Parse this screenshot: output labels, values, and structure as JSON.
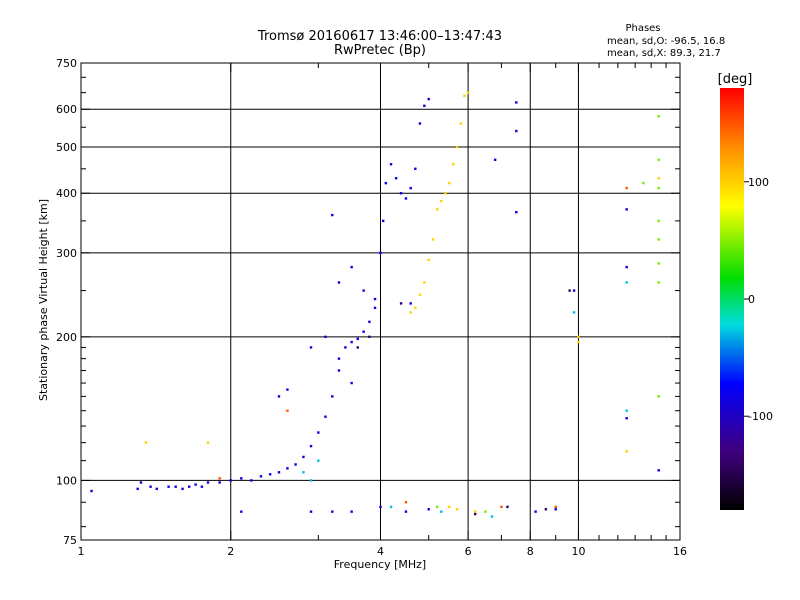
{
  "chart_data": {
    "type": "scatter",
    "title": "Tromsø 20160617 13:46:00–13:47:43",
    "subtitle": "RwPretec (Bp)",
    "xlabel": "Frequency [MHz]",
    "ylabel": "Stationary phase Virtual Height [km]",
    "x_scale": "log2",
    "y_scale": "log",
    "xlim": [
      1,
      16
    ],
    "ylim": [
      75,
      750
    ],
    "x_ticks": [
      1,
      2,
      4,
      6,
      8,
      10,
      16
    ],
    "x_gridlines": [
      2,
      4,
      6,
      8,
      10
    ],
    "y_ticks": [
      75,
      100,
      200,
      300,
      400,
      500,
      600,
      750
    ],
    "y_gridlines": [
      100,
      200,
      300,
      400,
      500,
      600
    ],
    "grid": true,
    "phase_box": {
      "heading": "Phases",
      "line_o": "mean, sd,O: -96.5, 16.8",
      "line_x": "mean, sd,X:  89.3, 21.7"
    },
    "colorbar": {
      "label": "[deg]",
      "range": [
        -180,
        180
      ],
      "ticks": [
        100,
        0,
        -100
      ],
      "colormap": "rainbow"
    },
    "series": [
      {
        "phase": -100,
        "points": [
          [
            1.05,
            95
          ],
          [
            1.3,
            96
          ],
          [
            1.32,
            99
          ],
          [
            1.38,
            97
          ],
          [
            1.42,
            96
          ],
          [
            1.5,
            97
          ],
          [
            1.55,
            97
          ],
          [
            1.6,
            96
          ],
          [
            1.65,
            97
          ],
          [
            1.7,
            98
          ],
          [
            1.75,
            97
          ],
          [
            1.8,
            99
          ],
          [
            1.9,
            99
          ],
          [
            2.0,
            100
          ],
          [
            2.1,
            101
          ],
          [
            2.2,
            100
          ],
          [
            2.3,
            102
          ],
          [
            2.4,
            103
          ],
          [
            2.5,
            104
          ],
          [
            2.6,
            106
          ],
          [
            2.7,
            108
          ],
          [
            2.8,
            112
          ],
          [
            2.9,
            118
          ],
          [
            3.0,
            126
          ],
          [
            3.1,
            136
          ],
          [
            3.2,
            150
          ],
          [
            3.3,
            170
          ],
          [
            3.4,
            190
          ],
          [
            3.5,
            195
          ],
          [
            3.6,
            198
          ],
          [
            3.7,
            205
          ],
          [
            3.8,
            215
          ],
          [
            3.9,
            240
          ],
          [
            4.0,
            300
          ],
          [
            4.05,
            350
          ],
          [
            4.1,
            420
          ],
          [
            4.2,
            460
          ],
          [
            4.3,
            430
          ],
          [
            4.4,
            400
          ],
          [
            4.5,
            390
          ],
          [
            4.6,
            410
          ],
          [
            4.7,
            450
          ],
          [
            4.8,
            560
          ],
          [
            4.9,
            610
          ],
          [
            5.0,
            630
          ],
          [
            3.3,
            260
          ],
          [
            3.5,
            280
          ],
          [
            3.7,
            250
          ],
          [
            3.9,
            230
          ],
          [
            3.1,
            200
          ],
          [
            3.3,
            180
          ],
          [
            3.5,
            160
          ],
          [
            2.5,
            150
          ],
          [
            2.6,
            155
          ],
          [
            2.9,
            190
          ],
          [
            3.2,
            360
          ],
          [
            4.6,
            235
          ],
          [
            4.0,
            88
          ],
          [
            4.5,
            86
          ],
          [
            5.0,
            87
          ],
          [
            3.2,
            86
          ],
          [
            3.5,
            86
          ],
          [
            2.9,
            86
          ],
          [
            2.1,
            86
          ],
          [
            7.5,
            620
          ],
          [
            7.5,
            540
          ],
          [
            7.5,
            365
          ],
          [
            6.8,
            470
          ],
          [
            9.8,
            250
          ],
          [
            12.5,
            370
          ],
          [
            12.5,
            280
          ],
          [
            12.5,
            135
          ],
          [
            14.5,
            105
          ],
          [
            9.0,
            87
          ],
          [
            8.2,
            86
          ]
        ]
      },
      {
        "phase": 100,
        "points": [
          [
            4.6,
            225
          ],
          [
            4.7,
            230
          ],
          [
            4.8,
            245
          ],
          [
            4.9,
            260
          ],
          [
            5.0,
            290
          ],
          [
            5.1,
            320
          ],
          [
            5.2,
            370
          ],
          [
            5.3,
            385
          ],
          [
            5.4,
            400
          ],
          [
            5.5,
            420
          ],
          [
            5.6,
            460
          ],
          [
            5.7,
            500
          ],
          [
            5.8,
            560
          ],
          [
            5.9,
            640
          ],
          [
            6.0,
            650
          ],
          [
            1.35,
            120
          ],
          [
            1.8,
            120
          ],
          [
            10.0,
            200
          ],
          [
            10.0,
            195
          ],
          [
            12.5,
            115
          ],
          [
            14.5,
            430
          ],
          [
            5.5,
            88
          ],
          [
            6.2,
            86
          ],
          [
            5.7,
            87
          ]
        ]
      },
      {
        "phase": 45,
        "points": [
          [
            14.5,
            580
          ],
          [
            14.5,
            470
          ],
          [
            14.5,
            410
          ],
          [
            14.5,
            350
          ],
          [
            14.5,
            320
          ],
          [
            14.5,
            285
          ],
          [
            14.5,
            260
          ],
          [
            14.5,
            150
          ],
          [
            13.5,
            420
          ],
          [
            5.2,
            88
          ],
          [
            6.5,
            86
          ]
        ]
      },
      {
        "phase": -30,
        "points": [
          [
            2.9,
            100
          ],
          [
            2.8,
            104
          ],
          [
            3.0,
            110
          ],
          [
            4.2,
            88
          ],
          [
            5.3,
            86
          ],
          [
            6.7,
            84
          ],
          [
            9.8,
            225
          ],
          [
            12.5,
            260
          ],
          [
            12.5,
            140
          ]
        ]
      },
      {
        "phase": 150,
        "points": [
          [
            1.9,
            101
          ],
          [
            2.6,
            140
          ],
          [
            12.5,
            410
          ],
          [
            7.0,
            88
          ],
          [
            9.0,
            88
          ],
          [
            4.5,
            90
          ]
        ]
      },
      {
        "phase": -150,
        "points": [
          [
            4.4,
            235
          ],
          [
            3.6,
            190
          ],
          [
            3.8,
            200
          ],
          [
            6.2,
            85
          ],
          [
            7.2,
            88
          ],
          [
            8.6,
            87
          ],
          [
            9.6,
            250
          ]
        ]
      }
    ]
  }
}
